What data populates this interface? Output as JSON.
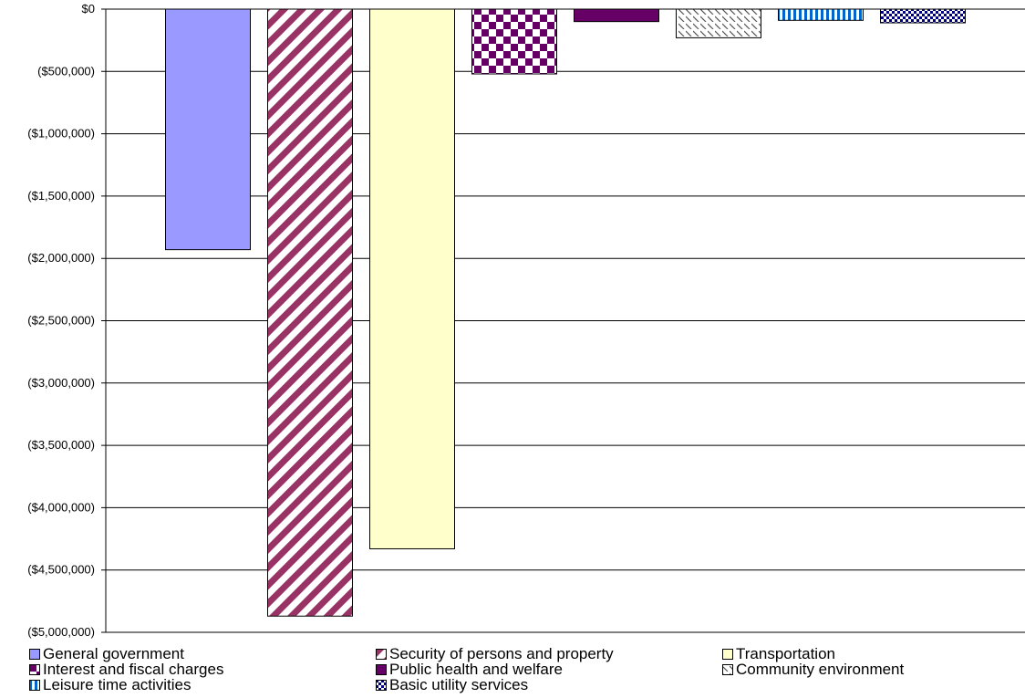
{
  "chart_data": {
    "type": "bar",
    "title": "",
    "xlabel": "",
    "ylabel": "",
    "ylim": [
      -5000000,
      0
    ],
    "yticks": [
      {
        "value": 0,
        "label": "$0"
      },
      {
        "value": -500000,
        "label": "($500,000)"
      },
      {
        "value": -1000000,
        "label": "($1,000,000)"
      },
      {
        "value": -1500000,
        "label": "($1,500,000)"
      },
      {
        "value": -2000000,
        "label": "($2,000,000)"
      },
      {
        "value": -2500000,
        "label": "($2,500,000)"
      },
      {
        "value": -3000000,
        "label": "($3,000,000)"
      },
      {
        "value": -3500000,
        "label": "($3,500,000)"
      },
      {
        "value": -4000000,
        "label": "($4,000,000)"
      },
      {
        "value": -4500000,
        "label": "($4,500,000)"
      },
      {
        "value": -5000000,
        "label": "($5,000,000)"
      }
    ],
    "grid": true,
    "legend_position": "bottom",
    "series": [
      {
        "name": "General government",
        "value": -1930000,
        "color": "#9999ff",
        "pattern": "solid"
      },
      {
        "name": "Security of persons and property",
        "value": -4870000,
        "color": "#993366",
        "pattern": "diagonal-stripes"
      },
      {
        "name": "Transportation",
        "value": -4330000,
        "color": "#ffffcc",
        "pattern": "solid"
      },
      {
        "name": "Interest and fiscal charges",
        "value": -520000,
        "color": "#660066",
        "pattern": "checker"
      },
      {
        "name": "Public health and welfare",
        "value": -100000,
        "color": "#660066",
        "pattern": "solid"
      },
      {
        "name": "Community environment",
        "value": -230000,
        "color": "#888888",
        "pattern": "back-diagonal-dashes"
      },
      {
        "name": "Leisure time activities",
        "value": -90000,
        "color": "#0066cc",
        "pattern": "vertical-stripes"
      },
      {
        "name": "Basic utility services",
        "value": -110000,
        "color": "#000080",
        "pattern": "small-checker"
      }
    ]
  }
}
